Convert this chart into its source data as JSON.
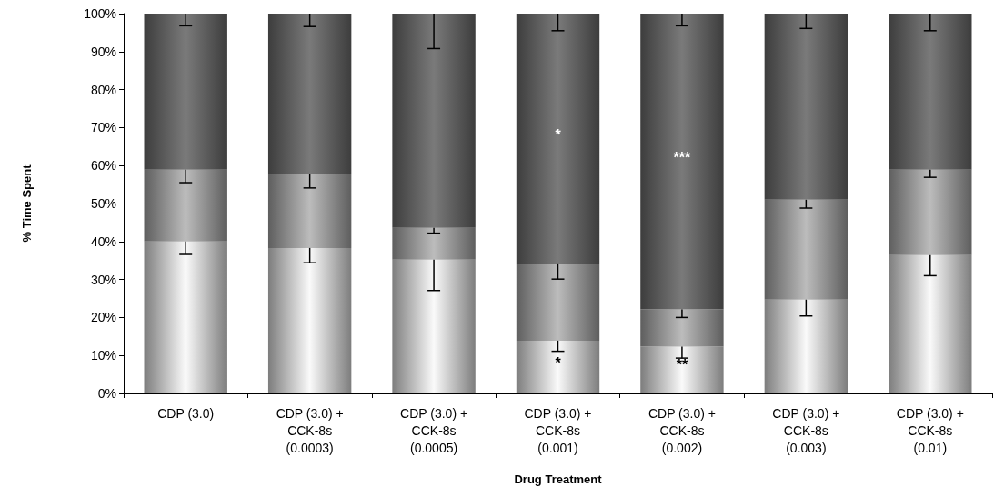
{
  "chart_data": {
    "type": "bar",
    "stacked": true,
    "xlabel": "Drug Treatment",
    "ylabel": "% Time Spent",
    "categories": [
      "CDP (3.0)",
      "CDP (3.0) +\nCCK-8s\n(0.0003)",
      "CDP (3.0) +\nCCK-8s\n(0.0005)",
      "CDP (3.0) +\nCCK-8s\n(0.001)",
      "CDP (3.0) +\nCCK-8s\n(0.002)",
      "CDP (3.0) +\nCCK-8s\n(0.003)",
      "CDP (3.0) +\nCCK-8s\n(0.01)"
    ],
    "series": [
      {
        "color": "#fafafa",
        "values": [
          40.0,
          38.3,
          35.2,
          13.9,
          12.3,
          24.7,
          36.4
        ],
        "errors": [
          [
            36.6,
            40.0
          ],
          [
            34.4,
            38.3
          ],
          [
            27.1,
            35.2
          ],
          [
            11.1,
            13.9
          ],
          [
            9.3,
            12.3
          ],
          [
            20.4,
            24.7
          ],
          [
            31.0,
            36.4
          ]
        ]
      },
      {
        "color": "#bcbcbc",
        "values": [
          18.9,
          19.4,
          8.4,
          20.1,
          9.8,
          26.3,
          22.5
        ],
        "errors": [
          [
            55.5,
            58.9
          ],
          [
            54.1,
            57.7
          ],
          [
            42.2,
            43.6
          ],
          [
            30.1,
            34.0
          ],
          [
            20.0,
            22.1
          ],
          [
            48.8,
            51.0
          ],
          [
            56.9,
            58.9
          ]
        ]
      },
      {
        "color": "#7a7a7a",
        "values": [
          41.1,
          42.3,
          56.4,
          66.0,
          77.9,
          49.0,
          41.1
        ],
        "errors": [
          [
            96.8,
            100
          ],
          [
            96.6,
            100
          ],
          [
            90.8,
            100
          ],
          [
            95.5,
            100
          ],
          [
            96.8,
            100
          ],
          [
            96.1,
            100
          ],
          [
            95.5,
            100
          ]
        ]
      }
    ],
    "ylim": [
      0,
      100
    ],
    "yticks": [
      {
        "value": 0,
        "label": "0%"
      },
      {
        "value": 10,
        "label": "10%"
      },
      {
        "value": 20,
        "label": "20%"
      },
      {
        "value": 30,
        "label": "30%"
      },
      {
        "value": 40,
        "label": "40%"
      },
      {
        "value": 50,
        "label": "50%"
      },
      {
        "value": 60,
        "label": "60%"
      },
      {
        "value": 70,
        "label": "70%"
      },
      {
        "value": 80,
        "label": "80%"
      },
      {
        "value": 90,
        "label": "90%"
      },
      {
        "value": 100,
        "label": "100%"
      }
    ],
    "grid": false,
    "annotations": [
      "*",
      "***",
      "*",
      "**"
    ]
  }
}
